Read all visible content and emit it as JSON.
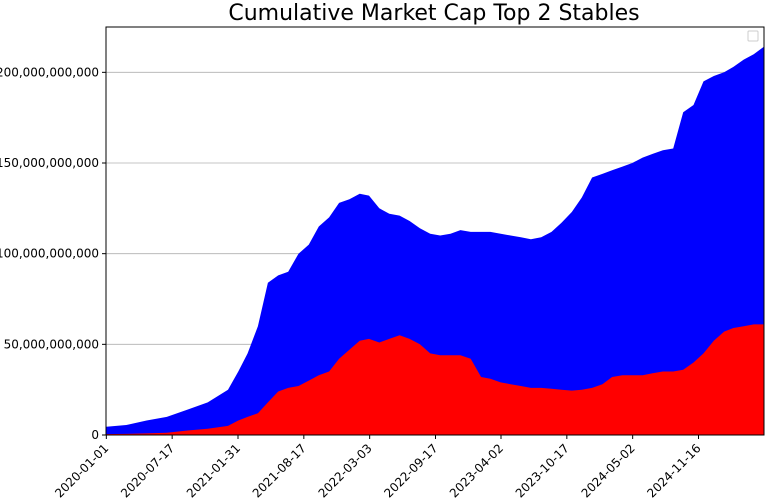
{
  "chart_data": {
    "type": "area",
    "stacked": true,
    "title": "Cumulative Market Cap Top 2 Stables",
    "xlabel": "",
    "ylabel": "",
    "x_tick_labels": [
      "2020-01-01",
      "2020-07-17",
      "2021-01-31",
      "2021-08-17",
      "2022-03-03",
      "2022-09-17",
      "2023-04-02",
      "2023-10-17",
      "2024-05-02",
      "2024-11-16"
    ],
    "y_ticks": [
      0,
      50000000000,
      100000000000,
      150000000000,
      200000000000
    ],
    "y_tick_labels": [
      "0",
      "50,000,000,000",
      "100,000,000,000",
      "150,000,000,000",
      "200,000,000,000"
    ],
    "xlim": [
      "2019-12-31",
      "2025-06-01"
    ],
    "ylim": [
      0,
      225000000000
    ],
    "grid": "horizontal",
    "legend": "top-right (empty)",
    "x": [
      "2020-01-01",
      "2020-03-01",
      "2020-05-01",
      "2020-07-01",
      "2020-09-01",
      "2020-11-01",
      "2021-01-01",
      "2021-02-01",
      "2021-03-01",
      "2021-04-01",
      "2021-05-01",
      "2021-06-01",
      "2021-07-01",
      "2021-08-01",
      "2021-09-01",
      "2021-10-01",
      "2021-11-01",
      "2021-12-01",
      "2022-01-01",
      "2022-02-01",
      "2022-03-01",
      "2022-04-01",
      "2022-05-01",
      "2022-06-01",
      "2022-07-01",
      "2022-08-01",
      "2022-09-01",
      "2022-10-01",
      "2022-11-01",
      "2022-12-01",
      "2023-01-01",
      "2023-02-01",
      "2023-03-01",
      "2023-04-01",
      "2023-05-01",
      "2023-06-01",
      "2023-07-01",
      "2023-08-01",
      "2023-09-01",
      "2023-10-01",
      "2023-11-01",
      "2023-12-01",
      "2024-01-01",
      "2024-02-01",
      "2024-03-01",
      "2024-04-01",
      "2024-05-01",
      "2024-06-01",
      "2024-07-01",
      "2024-08-01",
      "2024-09-01",
      "2024-10-01",
      "2024-11-01",
      "2024-12-01",
      "2025-01-01",
      "2025-02-01",
      "2025-03-01",
      "2025-04-01",
      "2025-05-01",
      "2025-05-31"
    ],
    "series": [
      {
        "color": "#ff0000",
        "values": [
          0.5,
          0.6,
          0.9,
          1.2,
          2.5,
          3.5,
          5,
          8,
          10,
          12,
          18,
          24,
          26,
          27,
          30,
          33,
          35,
          42,
          47,
          52,
          53,
          51,
          53,
          55,
          53,
          50,
          45,
          44,
          44,
          44,
          42,
          32,
          31,
          29,
          28,
          27,
          26,
          26,
          25.5,
          25,
          24.5,
          25,
          26,
          28,
          32,
          33,
          33,
          33,
          34,
          35,
          35,
          36,
          40,
          45,
          52,
          57,
          59,
          60,
          61,
          61
        ],
        "totals": [
          4.5,
          5.5,
          8,
          10,
          14,
          18,
          25,
          35,
          45,
          60,
          84,
          88,
          90,
          100,
          105,
          115,
          120,
          128,
          130,
          133,
          132,
          125,
          122,
          121,
          118,
          114,
          111,
          110,
          111,
          113,
          112,
          112,
          112,
          111,
          110,
          109,
          108,
          109,
          112,
          117,
          123,
          131,
          142,
          144,
          146,
          148,
          150,
          153,
          155,
          157,
          158,
          178,
          182,
          195,
          198,
          200,
          203,
          207,
          210,
          214
        ]
      }
    ]
  }
}
